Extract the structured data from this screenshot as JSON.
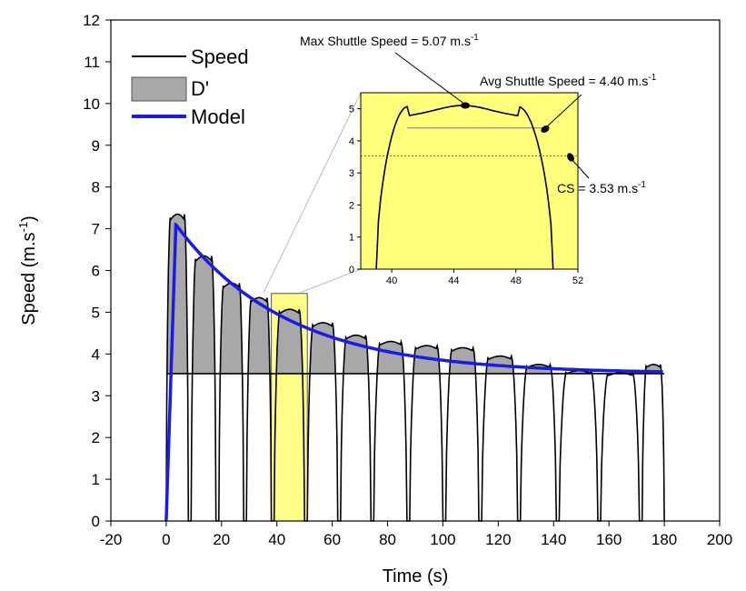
{
  "chart_data": [
    {
      "type": "line",
      "xlabel": "Time (s)",
      "ylabel": "Speed (m.s",
      "ylabel_sup": "-1",
      "ylabel_tail": ")",
      "xlim": [
        -20,
        200
      ],
      "ylim": [
        0,
        12
      ],
      "xticks": [
        "-20",
        "0",
        "20",
        "40",
        "60",
        "80",
        "100",
        "120",
        "140",
        "160",
        "180",
        "200"
      ],
      "yticks": [
        "0",
        "1",
        "2",
        "3",
        "4",
        "5",
        "6",
        "7",
        "8",
        "9",
        "10",
        "11",
        "12"
      ],
      "grid": false,
      "legend_position": "top-left",
      "legend": {
        "speed": "Speed",
        "dprime": "D'",
        "model": "Model"
      },
      "cs_level": 3.53,
      "shuttles": [
        {
          "start": 0,
          "end": 8,
          "peak": 7.35
        },
        {
          "start": 9,
          "end": 18,
          "peak": 6.35
        },
        {
          "start": 19,
          "end": 28,
          "peak": 5.7
        },
        {
          "start": 29,
          "end": 38,
          "peak": 5.35
        },
        {
          "start": 39,
          "end": 50,
          "peak": 5.07
        },
        {
          "start": 51,
          "end": 62,
          "peak": 4.75
        },
        {
          "start": 63,
          "end": 74,
          "peak": 4.45
        },
        {
          "start": 75,
          "end": 87,
          "peak": 4.3
        },
        {
          "start": 88,
          "end": 100,
          "peak": 4.2
        },
        {
          "start": 101,
          "end": 113,
          "peak": 4.15
        },
        {
          "start": 114,
          "end": 127,
          "peak": 3.95
        },
        {
          "start": 128,
          "end": 141,
          "peak": 3.75
        },
        {
          "start": 142,
          "end": 156,
          "peak": 3.6
        },
        {
          "start": 157,
          "end": 171,
          "peak": 3.55
        },
        {
          "start": 172,
          "end": 180,
          "peak": 3.75
        }
      ],
      "model": {
        "start": 0,
        "rise_end": 3.5,
        "peak": 7.1,
        "asymptote": 3.53,
        "tau": 40,
        "end": 180
      },
      "highlight": {
        "x": [
          38,
          51
        ],
        "y": [
          0,
          5.45
        ]
      },
      "colors": {
        "speed": "#000000",
        "dprime_fill": "#a8a8a8",
        "model": "#1a1aef",
        "highlight": "#ffff88",
        "inset_bg": "#ffff7a"
      }
    },
    {
      "type": "line",
      "xlim": [
        38,
        52
      ],
      "ylim": [
        0,
        5.5
      ],
      "xticks": [
        "40",
        "44",
        "48",
        "52"
      ],
      "yticks": [
        "0",
        "1",
        "2",
        "3",
        "4",
        "5"
      ],
      "shuttle": {
        "start": 39,
        "end": 50.4,
        "peak": 5.07
      },
      "avg_line": 4.4,
      "cs_line": 3.53,
      "annotations": {
        "max": {
          "text": "Max Shuttle Speed = 5.07 m.s",
          "sup": "-1"
        },
        "avg": {
          "text": "Avg Shuttle Speed = 4.40 m.s",
          "sup": "-1"
        },
        "cs": {
          "text": "CS = 3.53 m.s",
          "sup": "-1"
        }
      }
    }
  ]
}
